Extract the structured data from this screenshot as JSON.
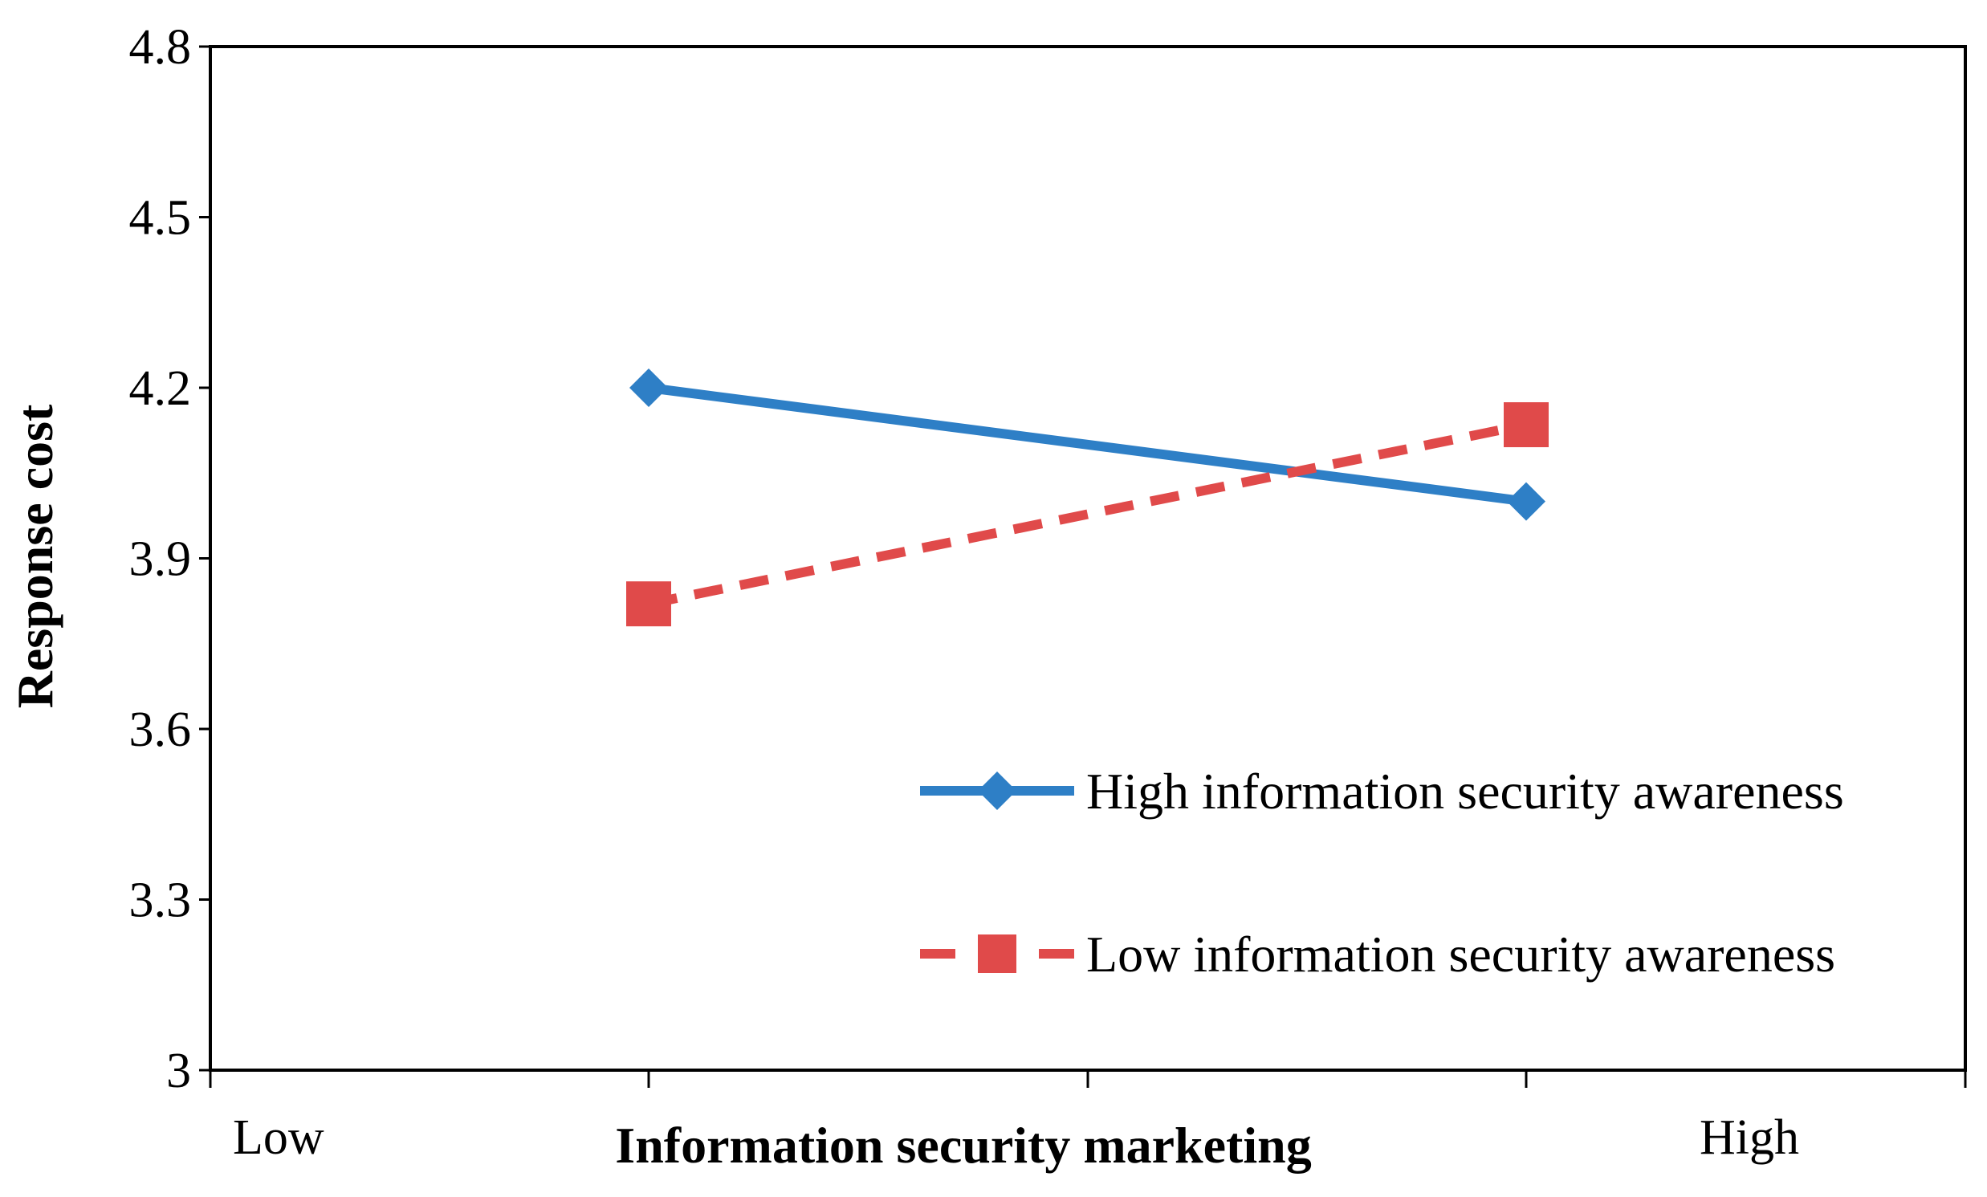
{
  "chart_data": {
    "type": "line",
    "title": "",
    "xlabel": "Information security marketing",
    "ylabel": "Response cost",
    "x_end_labels": {
      "low": "Low",
      "high": "High"
    },
    "categories": [
      "Low",
      "High"
    ],
    "ylim": [
      3,
      4.8
    ],
    "yticks": [
      "4.8",
      "4.5",
      "4.2",
      "3.9",
      "3.6",
      "3.3",
      "3"
    ],
    "ytick_values": [
      4.8,
      4.5,
      4.2,
      3.9,
      3.6,
      3.3,
      3
    ],
    "grid": false,
    "legend_position": "bottom-right",
    "series": [
      {
        "name": "High information security awareness",
        "values": [
          4.2,
          4.0
        ],
        "color": "#2e7fc6",
        "line_style": "solid",
        "marker": "diamond"
      },
      {
        "name": "Low information security awareness",
        "values": [
          3.82,
          4.135
        ],
        "color": "#e04a4a",
        "line_style": "dashed",
        "marker": "square"
      }
    ]
  }
}
